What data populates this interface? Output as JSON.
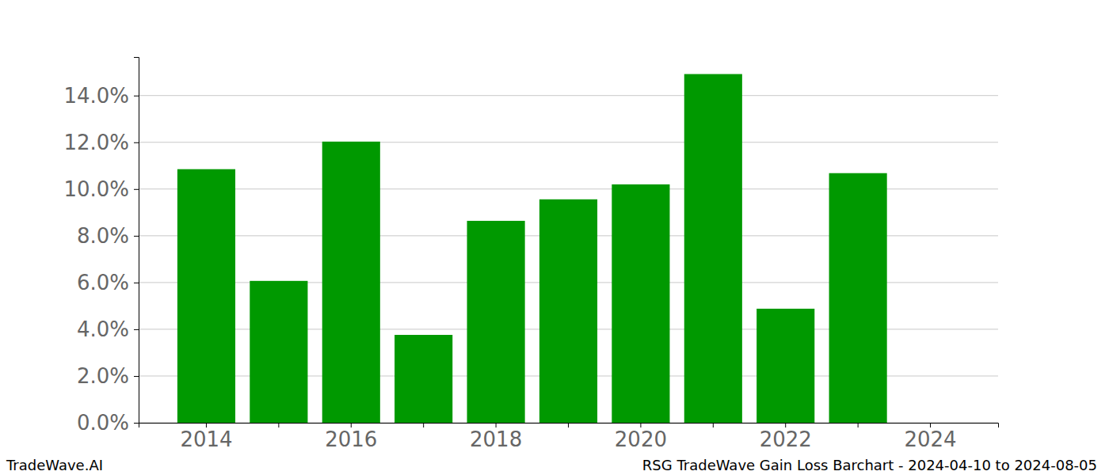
{
  "chart_data": {
    "type": "bar",
    "title": "RSG TradeWave Gain Loss Barchart - 2024-04-10 to 2024-08-05",
    "annotations": [
      "TradeWave.AI"
    ],
    "categories": [
      "2014",
      null,
      "2016",
      null,
      "2018",
      null,
      "2020",
      null,
      "2022",
      null,
      "2024"
    ],
    "values": [
      10.85,
      6.07,
      12.03,
      3.76,
      8.64,
      9.56,
      10.2,
      14.92,
      4.88,
      10.68,
      null
    ],
    "color": "#009900",
    "ylim": [
      0,
      15.65
    ],
    "yticks": [
      {
        "value": 0,
        "label": "0.0%"
      },
      {
        "value": 2,
        "label": "2.0%"
      },
      {
        "value": 4,
        "label": "4.0%"
      },
      {
        "value": 6,
        "label": "6.0%"
      },
      {
        "value": 8,
        "label": "8.0%"
      },
      {
        "value": 10,
        "label": "10.0%"
      },
      {
        "value": 12,
        "label": "12.0%"
      },
      {
        "value": 14,
        "label": "14.0%"
      }
    ],
    "grid": true
  }
}
